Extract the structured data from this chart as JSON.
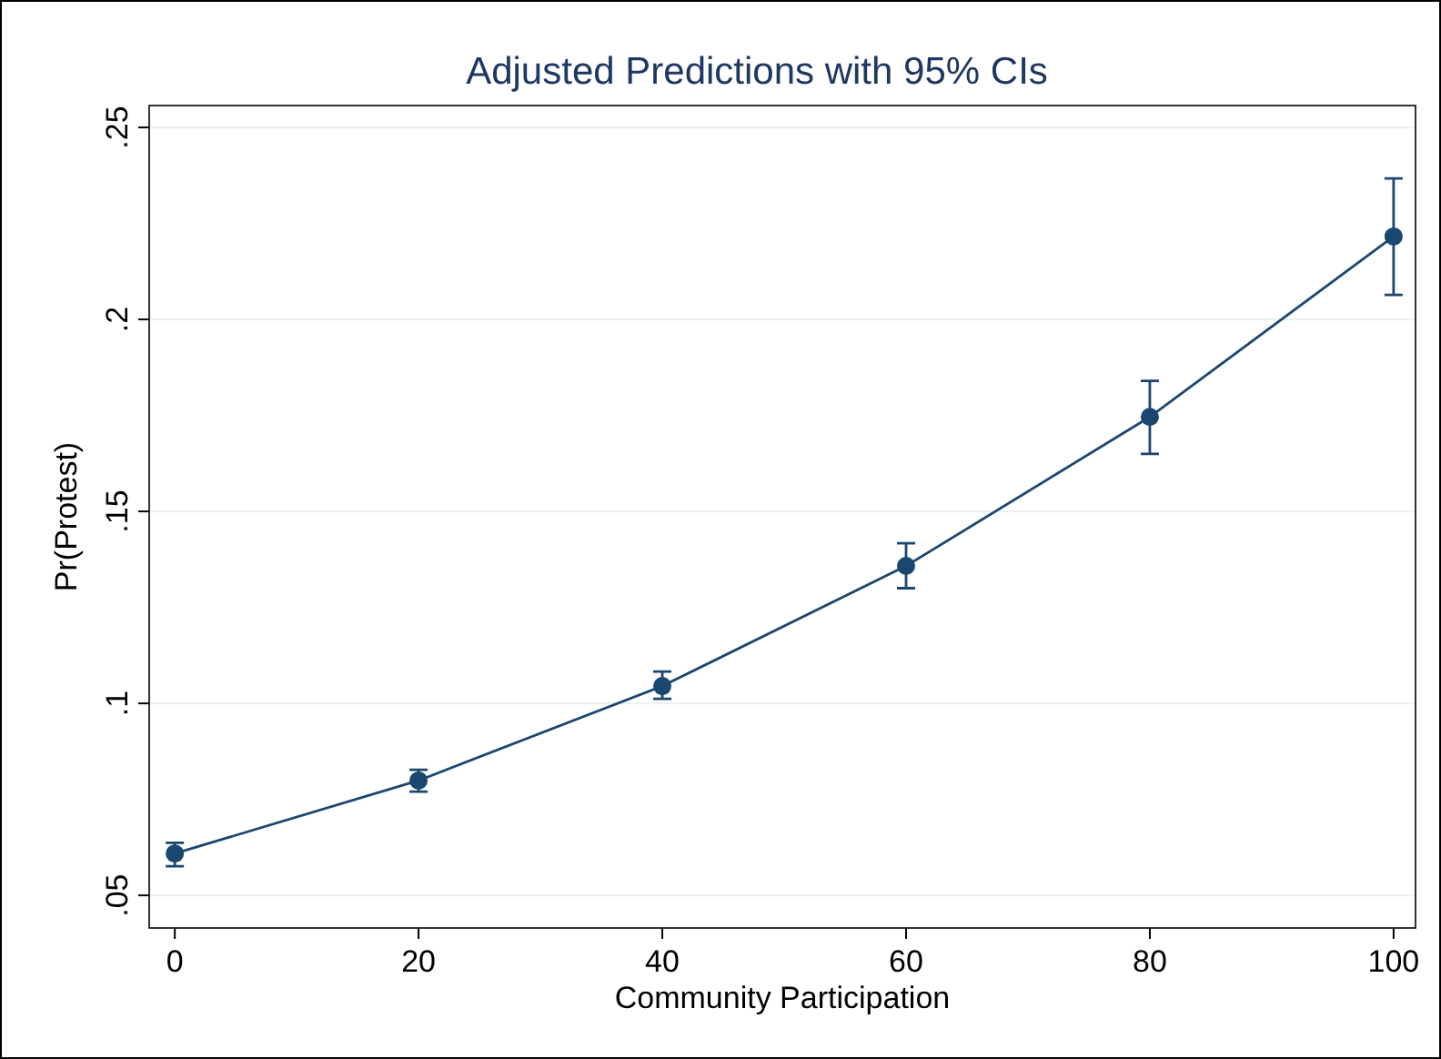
{
  "chart_data": {
    "type": "line",
    "title": "Adjusted Predictions with 95% CIs",
    "xlabel": "Community Participation",
    "ylabel": "Pr(Protest)",
    "x": [
      0,
      20,
      40,
      60,
      80,
      100
    ],
    "series": [
      {
        "color": "#1a476f",
        "values": [
          0.0609,
          0.0799,
          0.1045,
          0.1358,
          0.1746,
          0.2216
        ],
        "errors": [
          [
            0.0576,
            0.0637
          ],
          [
            0.077,
            0.0827
          ],
          [
            0.1012,
            0.1083
          ],
          [
            0.13,
            0.1417
          ],
          [
            0.165,
            0.184
          ],
          [
            0.2064,
            0.2367
          ]
        ]
      }
    ],
    "xlim": [
      -2.1,
      101.8
    ],
    "xticks": [
      0,
      20,
      40,
      60,
      80,
      100
    ],
    "ylim": [
      0.0415,
      0.2557
    ],
    "yticks": [
      {
        "value": 0.05,
        "label": ".05"
      },
      {
        "value": 0.1,
        "label": ".1"
      },
      {
        "value": 0.15,
        "label": ".15"
      },
      {
        "value": 0.2,
        "label": ".2"
      },
      {
        "value": 0.25,
        "label": ".25"
      }
    ],
    "grid": "y",
    "marker": "circle",
    "line_style": "solid"
  }
}
